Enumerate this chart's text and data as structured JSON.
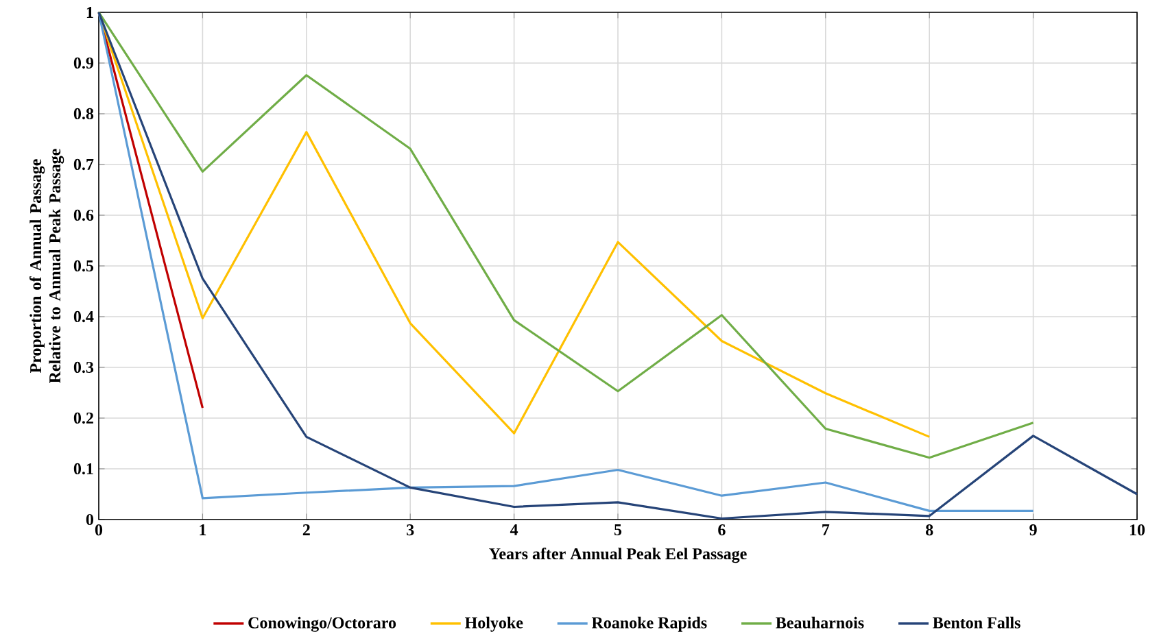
{
  "chart_data": {
    "type": "line",
    "xlabel": "Years after Annual Peak Eel Passage",
    "ylabel": "Proportion of Annual Passage Relative to Annual Peak Passage",
    "xlim": [
      0,
      10
    ],
    "xticks": [
      0,
      1,
      2,
      3,
      4,
      5,
      6,
      7,
      8,
      9,
      10
    ],
    "ylim": [
      0,
      1
    ],
    "yticks": [
      0,
      0.1,
      0.2,
      0.3,
      0.4,
      0.5,
      0.6,
      0.7,
      0.8,
      0.9,
      1
    ],
    "grid": true,
    "legend": "bottom",
    "marker": "none",
    "line_style": "solid",
    "series": [
      {
        "name": "Conowingo/Octoraro",
        "color": "#c00000",
        "x": [
          0,
          1
        ],
        "values": [
          1,
          0.22
        ]
      },
      {
        "name": "Holyoke",
        "color": "#ffc000",
        "x": [
          0,
          1,
          2,
          3,
          4,
          5,
          6,
          7,
          8
        ],
        "values": [
          1,
          0.397,
          0.764,
          0.387,
          0.17,
          0.547,
          0.352,
          0.249,
          0.163
        ]
      },
      {
        "name": "Roanoke Rapids",
        "color": "#5b9bd5",
        "x": [
          0,
          1,
          2,
          3,
          4,
          5,
          6,
          7,
          8,
          9
        ],
        "values": [
          1,
          0.042,
          0.053,
          0.063,
          0.066,
          0.098,
          0.047,
          0.073,
          0.017,
          0.017
        ]
      },
      {
        "name": "Beauharnois",
        "color": "#70ad47",
        "x": [
          0,
          1,
          2,
          3,
          4,
          5,
          6,
          7,
          8,
          9
        ],
        "values": [
          1,
          0.686,
          0.876,
          0.731,
          0.393,
          0.253,
          0.403,
          0.179,
          0.122,
          0.191
        ]
      },
      {
        "name": "Benton Falls",
        "color": "#264478",
        "x": [
          0,
          1,
          2,
          3,
          4,
          5,
          6,
          7,
          8,
          9,
          10
        ],
        "values": [
          1,
          0.475,
          0.163,
          0.063,
          0.025,
          0.034,
          0.002,
          0.015,
          0.007,
          0.165,
          0.05
        ]
      }
    ]
  }
}
